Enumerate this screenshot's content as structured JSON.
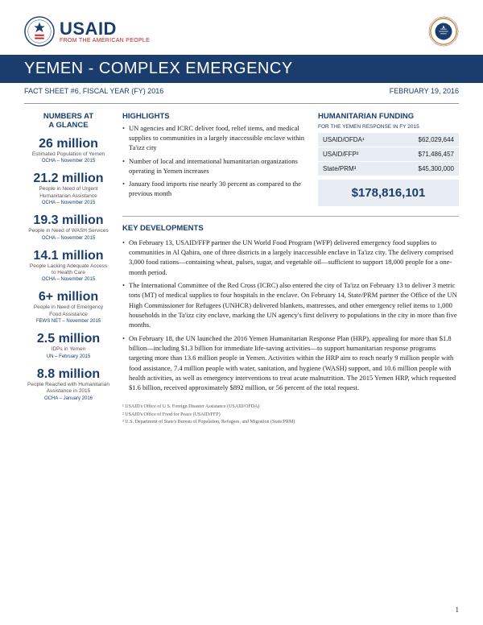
{
  "header": {
    "usaid_main": "USAID",
    "usaid_sub": "FROM THE AMERICAN PEOPLE",
    "title": "YEMEN - COMPLEX EMERGENCY",
    "factsheet_label": "FACT SHEET #6, FISCAL YEAR (FY) 2016",
    "date": "FEBRUARY 19, 2016"
  },
  "sidebar": {
    "title_l1": "NUMBERS AT",
    "title_l2": "A GLANCE",
    "stats": [
      {
        "num": "26 million",
        "desc": "Estimated Population of Yemen",
        "src": "OCHA – November 2015"
      },
      {
        "num": "21.2 million",
        "desc": "People in Need of Urgent Humanitarian Assistance",
        "src": "OCHA – November 2015"
      },
      {
        "num": "19.3 million",
        "desc": "People in Need of WASH Services",
        "src": "OCHA – November 2015"
      },
      {
        "num": "14.1 million",
        "desc": "People Lacking Adequate Access to Health Care",
        "src": "OCHA – November 2015"
      },
      {
        "num": "6+ million",
        "desc": "People in Need of Emergency Food Assistance",
        "src": "FEWS NET – November 2015"
      },
      {
        "num": "2.5 million",
        "desc": "IDPs in Yemen",
        "src": "UN – February 2015"
      },
      {
        "num": "8.8 million",
        "desc": "People Reached with Humanitarian Assistance in 2015",
        "src": "OCHA – January 2016"
      }
    ]
  },
  "highlights": {
    "title": "HIGHLIGHTS",
    "items": [
      "UN agencies and ICRC deliver food, relief items, and medical supplies to communities in a largely inaccessible enclave within Ta'izz city",
      "Number of local and international humanitarian organizations operating in Yemen increases",
      "January food imports rise nearly 30 percent as compared to the previous month"
    ]
  },
  "funding": {
    "title": "HUMANITARIAN FUNDING",
    "subtitle": "FOR THE YEMEN RESPONSE IN FY 2015",
    "rows": [
      {
        "label": "USAID/OFDA¹",
        "value": "$62,029,644"
      },
      {
        "label": "USAID/FFP²",
        "value": "$71,486,457"
      },
      {
        "label": "State/PRM³",
        "value": "$45,300,000"
      }
    ],
    "total": "$178,816,101"
  },
  "key_dev": {
    "title": "KEY DEVELOPMENTS",
    "items": [
      "On February 13, USAID/FFP partner the UN World Food Program (WFP) delivered emergency food supplies to communities in Al Qahira, one of three districts in a largely inaccessible enclave in Ta'izz city.  The delivery comprised 3,000 food rations—containing wheat, pulses, sugar, and vegetable oil—sufficient to support 18,000 people for a one-month period.",
      "The International Committee of the Red Cross (ICRC) also entered the city of Ta'izz on February 13 to deliver 3 metric tons (MT) of medical supplies to four hospitals in the enclave.  On February 14, State/PRM partner the Office of the UN High Commissioner for Refugees (UNHCR) delivered blankets, mattresses, and other emergency relief items to 1,000 households in the Ta'izz city enclave, marking the UN agency's first delivery to populations in the city in more than five months.",
      "On February 18, the UN launched the 2016 Yemen Humanitarian Response Plan (HRP), appealing for more than $1.8 billion—including $1.3 billion for immediate life-saving activities—to support humanitarian response programs targeting more than 13.6 million people in Yemen.  Activities within the HRP aim to reach nearly 9 million people with food assistance, 7.4 million people with water, sanitation, and hygiene (WASH) support, and 10.6 million people with health activities, as well as emergency interventions to treat acute malnutrition.  The 2015 Yemen HRP, which requested $1.6 billion, received approximately $892 million, or 56 percent of the total request."
    ]
  },
  "footnotes": [
    "¹ USAID's Office of U.S. Foreign Disaster Assistance (USAID/OFDA)",
    "² USAID's Office of Food for Peace (USAID/FFP)",
    "³ U.S. Department of State's Bureau of Population, Refugees, and Migration (State/PRM)"
  ],
  "page_num": "1"
}
